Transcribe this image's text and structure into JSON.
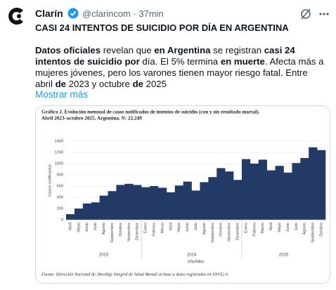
{
  "tweet": {
    "name": "Clarín",
    "handle": "@clarincom · 37min",
    "headline": "CASI 24 INTENTOS DE SUICIDIO POR DÍA EN ARGENTINA",
    "body": [
      {
        "text": "Datos oficiales",
        "bold": true
      },
      {
        "text": " revelan que ",
        "bold": false
      },
      {
        "text": "en Argentina",
        "bold": true
      },
      {
        "text": " se registran ",
        "bold": false
      },
      {
        "text": "casi 24 intentos de suicidio por",
        "bold": true
      },
      {
        "text": " día. El 5% termina ",
        "bold": false
      },
      {
        "text": "en muerte",
        "bold": true
      },
      {
        "text": ". Afecta más a mujeres jóvenes, pero los varones tienen mayor riesgo fatal. Entre abril ",
        "bold": false
      },
      {
        "text": "de",
        "bold": true
      },
      {
        "text": " 2023 y octubre ",
        "bold": false
      },
      {
        "text": "de",
        "bold": true
      },
      {
        "text": " 2025",
        "bold": false
      }
    ],
    "more": "Mostrar más"
  },
  "chart_data": {
    "type": "bar",
    "title": "Gráfico 2. Evolución mensual de casos notificados de intentos de suicidio (con y sin resultado mortal).",
    "subtitle": "Abril 2023–octubre 2025. Argentina. N: 22.249",
    "y_label": "Casos notificados",
    "x_label": "Año/Mes",
    "source": "Fuente: Dirección Nacional de Abordaje Integral de Salud Mental en base a datos registrados en SNVS2.0.",
    "years": [
      "2023",
      "2024",
      "2025"
    ],
    "categories": [
      "Abril",
      "Mayo",
      "Junio",
      "Julio",
      "Agosto",
      "Septiembre",
      "Octubre",
      "Noviembre",
      "Diciembre",
      "Enero",
      "Febrero",
      "Marzo",
      "Abril",
      "Mayo",
      "Junio",
      "Julio",
      "Agosto",
      "Septiembre",
      "Octubre",
      "Noviembre",
      "Diciembre",
      "Enero",
      "Febrero",
      "Marzo",
      "Abril",
      "Mayo",
      "Junio",
      "Julio",
      "Agosto",
      "Septiembre",
      "Octubre"
    ],
    "values": [
      100,
      200,
      290,
      310,
      430,
      510,
      620,
      640,
      620,
      580,
      600,
      570,
      490,
      610,
      680,
      520,
      670,
      760,
      920,
      860,
      710,
      1080,
      1000,
      1070,
      880,
      960,
      840,
      1010,
      1100,
      1290,
      1240
    ],
    "color": "#233a66",
    "ylim": [
      0,
      1400
    ],
    "yticks": [
      0,
      200,
      400,
      600,
      800,
      1000,
      1200,
      1400
    ],
    "grid": true
  }
}
